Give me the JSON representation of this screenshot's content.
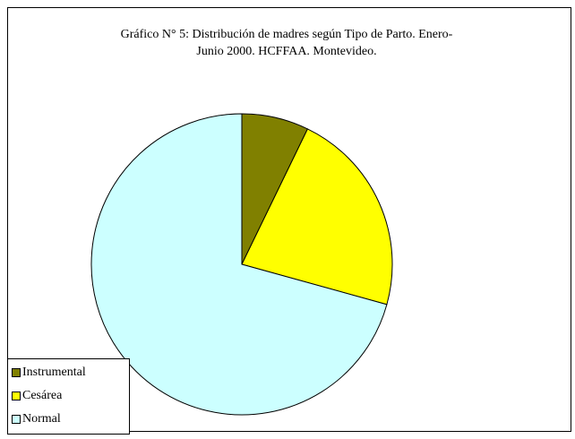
{
  "chart_data": {
    "type": "pie",
    "title": "Gráfico N° 5: Distribución de madres según Tipo de Parto. Enero-\nJunio 2000. HCFFAA. Montevideo.",
    "categories": [
      "Instrumental",
      "Cesárea",
      "Normal"
    ],
    "values": [
      7.2,
      22.1,
      70.7
    ],
    "colors": [
      "#808000",
      "#ffff00",
      "#ccffff"
    ],
    "legend": "bottom-left"
  }
}
